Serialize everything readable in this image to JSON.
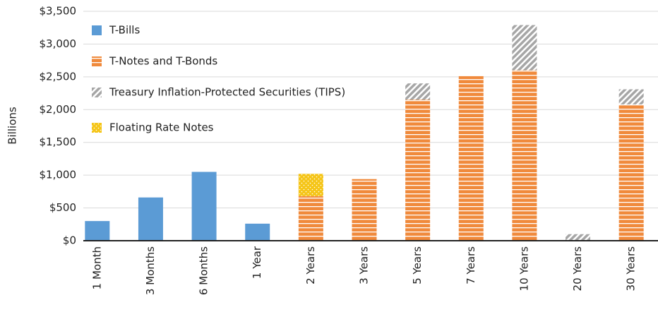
{
  "chart_data": {
    "type": "stacked_bar",
    "y_label": "Billions",
    "categories": [
      "1 Month",
      "3 Months",
      "6 Months",
      "1 Year",
      "2 Years",
      "3 Years",
      "5 Years",
      "7 Years",
      "10 Years",
      "20 Years",
      "30 Years"
    ],
    "series": [
      {
        "name": "T-Bills",
        "color": "#5b9bd5",
        "values": [
          300,
          660,
          1050,
          260,
          null,
          null,
          null,
          null,
          null,
          null,
          null
        ]
      },
      {
        "name": "T-Notes and T-Bonds",
        "color": "#f08a3c",
        "values": [
          null,
          null,
          null,
          null,
          680,
          940,
          2150,
          2510,
          2600,
          null,
          2080
        ]
      },
      {
        "name": "Treasury Inflation-Protected Securities (TIPS)",
        "color": "#a6a6a6",
        "values": [
          null,
          null,
          null,
          null,
          null,
          null,
          250,
          null,
          690,
          100,
          230
        ]
      },
      {
        "name": "Floating Rate Notes",
        "color": "#f5c518",
        "values": [
          null,
          null,
          null,
          null,
          340,
          null,
          null,
          null,
          null,
          null,
          null
        ]
      }
    ],
    "ylim": [
      0,
      3500
    ],
    "yticks": [
      {
        "value": 0,
        "label": "$0"
      },
      {
        "value": 500,
        "label": "$500"
      },
      {
        "value": 1000,
        "label": "$1,000"
      },
      {
        "value": 1500,
        "label": "$1,500"
      },
      {
        "value": 2000,
        "label": "$2,000"
      },
      {
        "value": 2500,
        "label": "$2,500"
      },
      {
        "value": 3000,
        "label": "$3,000"
      },
      {
        "value": 3500,
        "label": "$3,500"
      }
    ],
    "grid": true,
    "legend": "upper left"
  }
}
